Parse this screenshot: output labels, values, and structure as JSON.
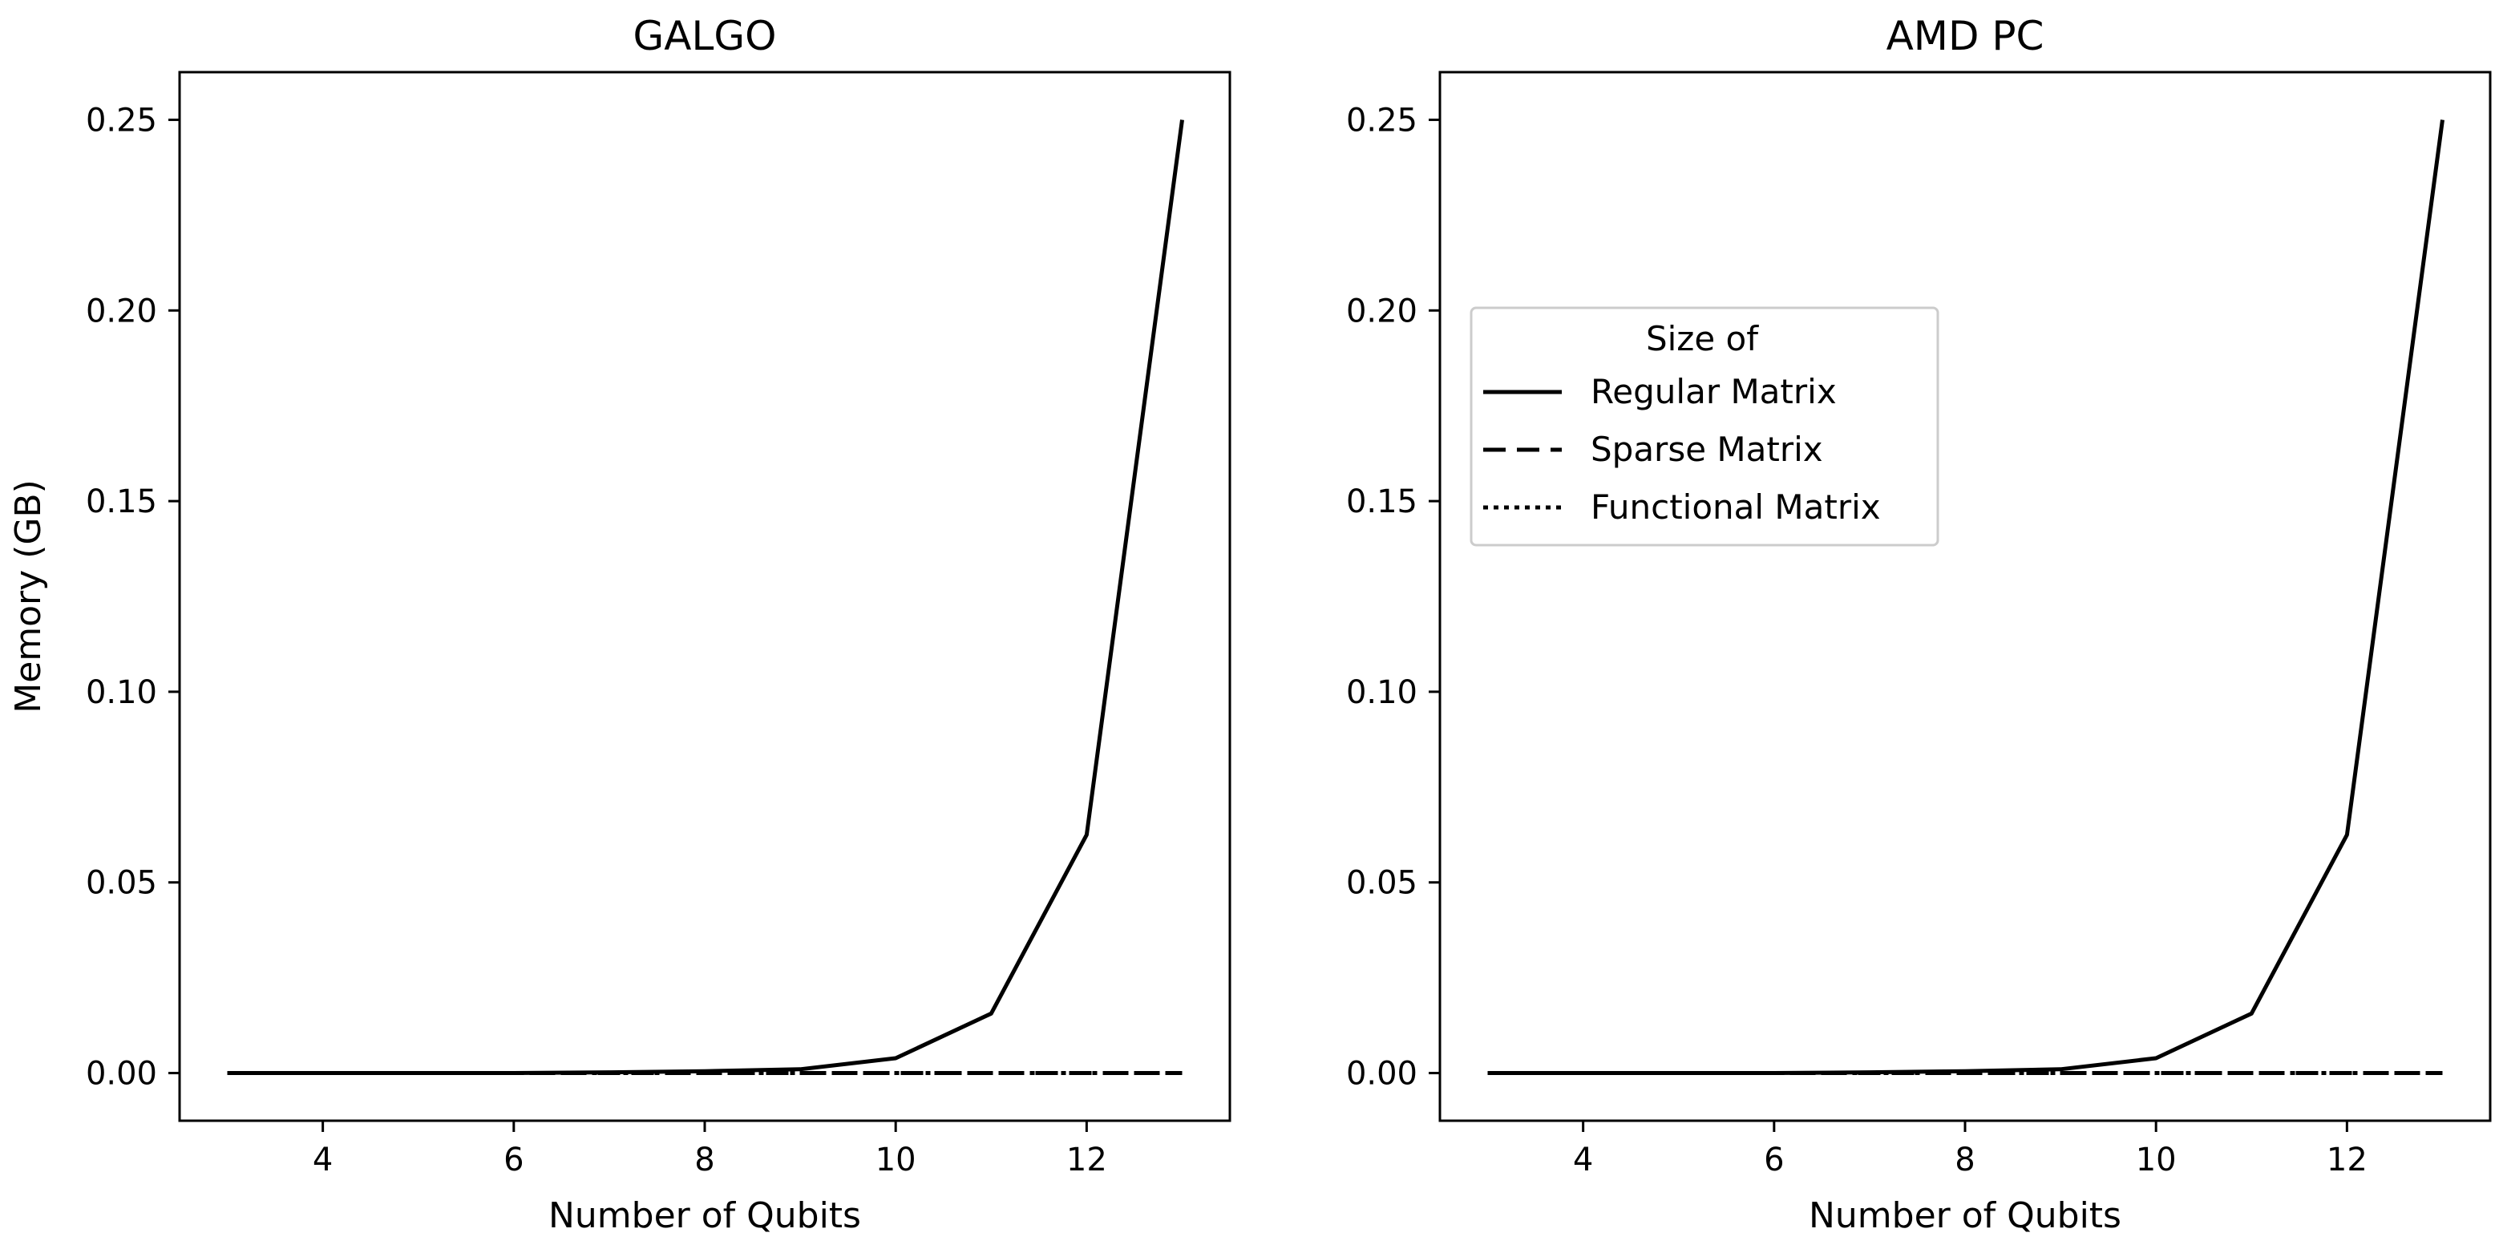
{
  "figure": {
    "ylabel": "Memory (GB)"
  },
  "chart_data": [
    {
      "type": "line",
      "title": "GALGO",
      "xlabel": "Number of Qubits",
      "ylabel": "Memory (GB)",
      "xlim": [
        2.5,
        13.5
      ],
      "ylim": [
        -0.0125,
        0.2625
      ],
      "xticks": [
        4,
        6,
        8,
        10,
        12
      ],
      "yticks": [
        0.0,
        0.05,
        0.1,
        0.15,
        0.2,
        0.25
      ],
      "grid": false,
      "x": [
        3,
        4,
        5,
        6,
        7,
        8,
        9,
        10,
        11,
        12,
        13
      ],
      "series": [
        {
          "name": "Regular Matrix",
          "style": "solid",
          "color": "#000000",
          "values": [
            0.0,
            0.0,
            0.0,
            0.0,
            0.0002,
            0.0005,
            0.001,
            0.0039,
            0.0156,
            0.0625,
            0.25
          ]
        },
        {
          "name": "Sparse Matrix",
          "style": "dashed",
          "color": "#000000",
          "values": [
            0,
            0,
            0,
            0,
            0,
            0,
            0,
            0,
            0,
            0,
            0
          ]
        },
        {
          "name": "Functional Matrix",
          "style": "dotted",
          "color": "#000000",
          "values": [
            0,
            0,
            0,
            0,
            0,
            0,
            0,
            0,
            0,
            0,
            0
          ]
        }
      ]
    },
    {
      "type": "line",
      "title": "AMD PC",
      "xlabel": "Number of Qubits",
      "xlim": [
        2.5,
        13.5
      ],
      "ylim": [
        -0.0125,
        0.2625
      ],
      "xticks": [
        4,
        6,
        8,
        10,
        12
      ],
      "yticks": [
        0.0,
        0.05,
        0.1,
        0.15,
        0.2,
        0.25
      ],
      "grid": false,
      "legend": {
        "title": "Size of",
        "placement": "center-left"
      },
      "x": [
        3,
        4,
        5,
        6,
        7,
        8,
        9,
        10,
        11,
        12,
        13
      ],
      "series": [
        {
          "name": "Regular Matrix",
          "style": "solid",
          "color": "#000000",
          "values": [
            0.0,
            0.0,
            0.0,
            0.0,
            0.0002,
            0.0005,
            0.001,
            0.0039,
            0.0156,
            0.0625,
            0.25
          ]
        },
        {
          "name": "Sparse Matrix",
          "style": "dashed",
          "color": "#000000",
          "values": [
            0,
            0,
            0,
            0,
            0,
            0,
            0,
            0,
            0,
            0,
            0
          ]
        },
        {
          "name": "Functional Matrix",
          "style": "dotted",
          "color": "#000000",
          "values": [
            0,
            0,
            0,
            0,
            0,
            0,
            0,
            0,
            0,
            0,
            0
          ]
        }
      ]
    }
  ]
}
